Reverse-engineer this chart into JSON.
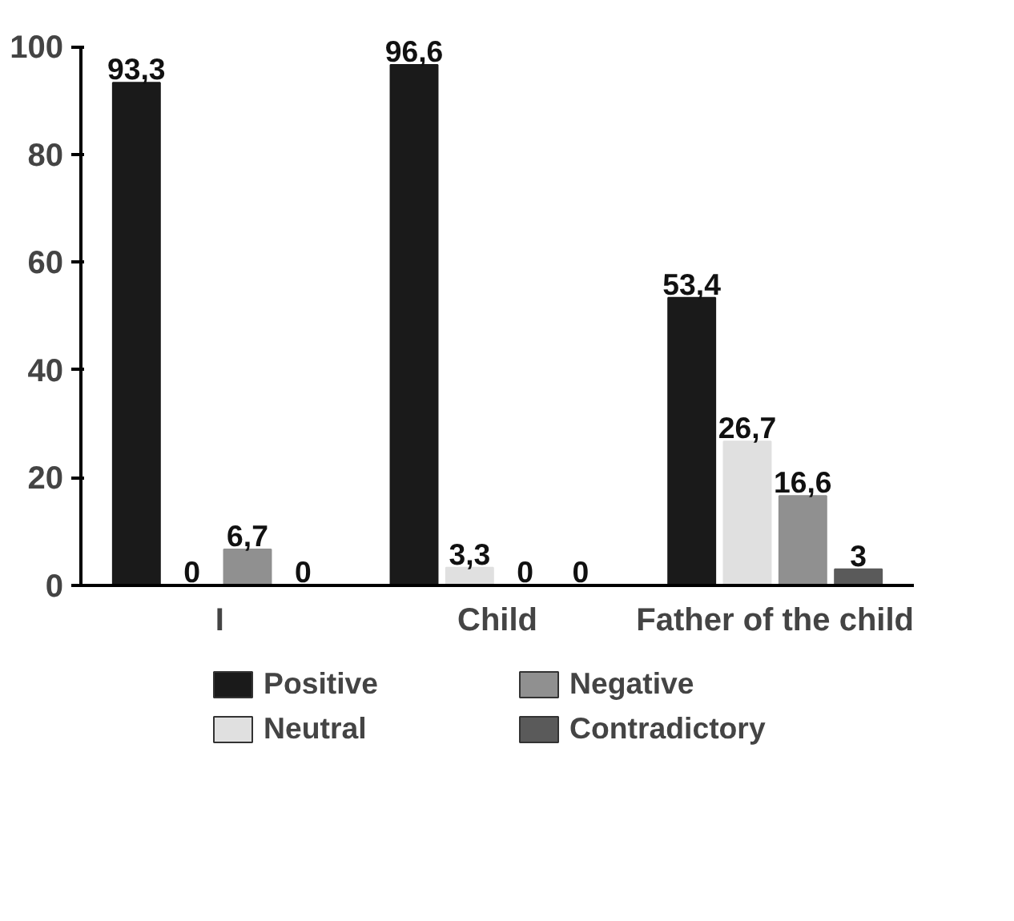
{
  "chart_data": {
    "type": "bar",
    "categories": [
      "I",
      "Child",
      "Father of the child"
    ],
    "ylim": [
      0,
      100
    ],
    "yticks": [
      0,
      20,
      40,
      60,
      80,
      100
    ],
    "grid": false,
    "legend": "bottom",
    "series": [
      {
        "name": "Positive",
        "color": "#1a1a1a",
        "values": [
          93.3,
          96.6,
          53.4
        ],
        "value_labels": [
          "93,3",
          "96,6",
          "53,4"
        ]
      },
      {
        "name": "Neutral",
        "color": "#e0e0e0",
        "values": [
          0,
          3.3,
          26.7
        ],
        "value_labels": [
          "0",
          "3,3",
          "26,7"
        ]
      },
      {
        "name": "Negative",
        "color": "#909090",
        "values": [
          6.7,
          0,
          16.6
        ],
        "value_labels": [
          "6,7",
          "0",
          "16,6"
        ]
      },
      {
        "name": "Contradictory",
        "color": "#5a5a5a",
        "values": [
          0,
          0,
          3
        ],
        "value_labels": [
          "0",
          "0",
          "3"
        ]
      }
    ]
  }
}
